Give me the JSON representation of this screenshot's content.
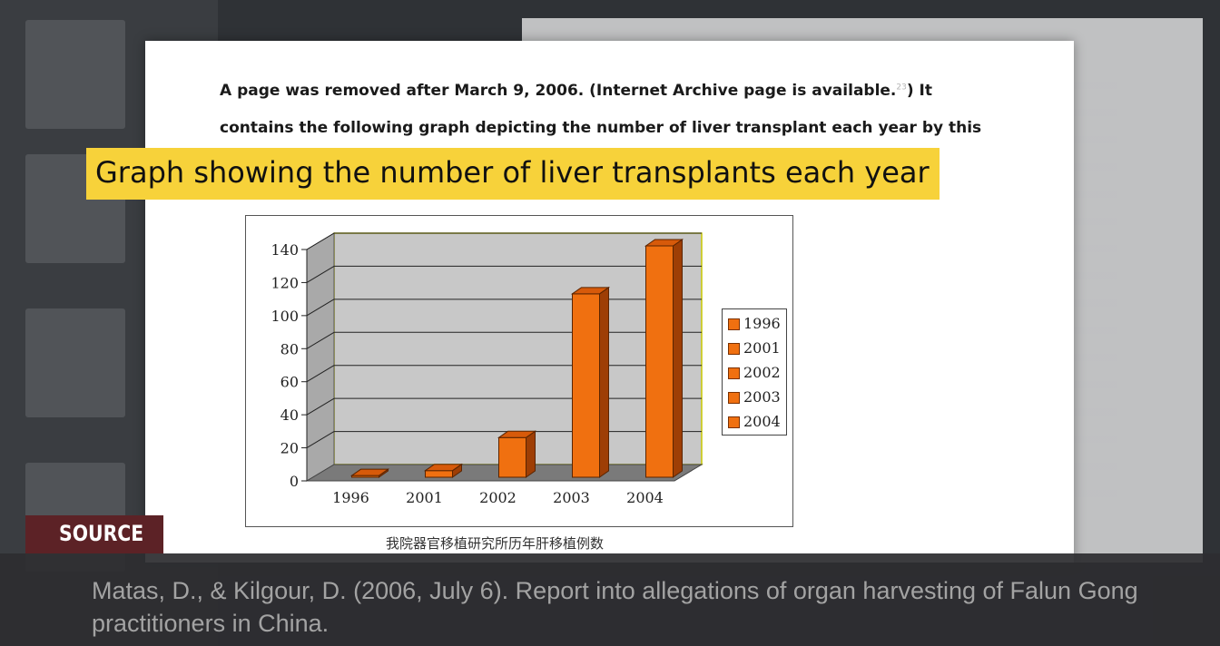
{
  "document": {
    "line1_text": "A page was removed after March 9, 2006. (Internet Archive page is available.",
    "line1_footnote": "23",
    "line1_end": ")   It",
    "line2_text": "contains the following graph depicting the number of liver transplant each year by this"
  },
  "banner": {
    "text": "Graph showing the number of liver transplants each year"
  },
  "chart_data": {
    "type": "bar",
    "categories": [
      "1996",
      "2001",
      "2002",
      "2003",
      "2004"
    ],
    "values": [
      1,
      4,
      24,
      111,
      140
    ],
    "ylim": [
      0,
      140
    ],
    "yticks": [
      "0",
      "20",
      "40",
      "60",
      "80",
      "100",
      "120",
      "140"
    ],
    "legend": [
      "1996",
      "2001",
      "2002",
      "2003",
      "2004"
    ],
    "legend_position": "right",
    "grid": true,
    "caption": "我院器官移植研究所历年肝移植例数",
    "colors": {
      "bar": "#f07010",
      "bar_side": "#9e3e05",
      "bar_top": "#d75a0a",
      "plot_bg": "#c8c8c8",
      "floor": "#7a7a7a"
    }
  },
  "source": {
    "tag": "SOURCE",
    "citation": "Matas, D., & Kilgour, D. (2006, July 6). Report into allegations of organ harvesting of Falun Gong practitioners in China."
  }
}
